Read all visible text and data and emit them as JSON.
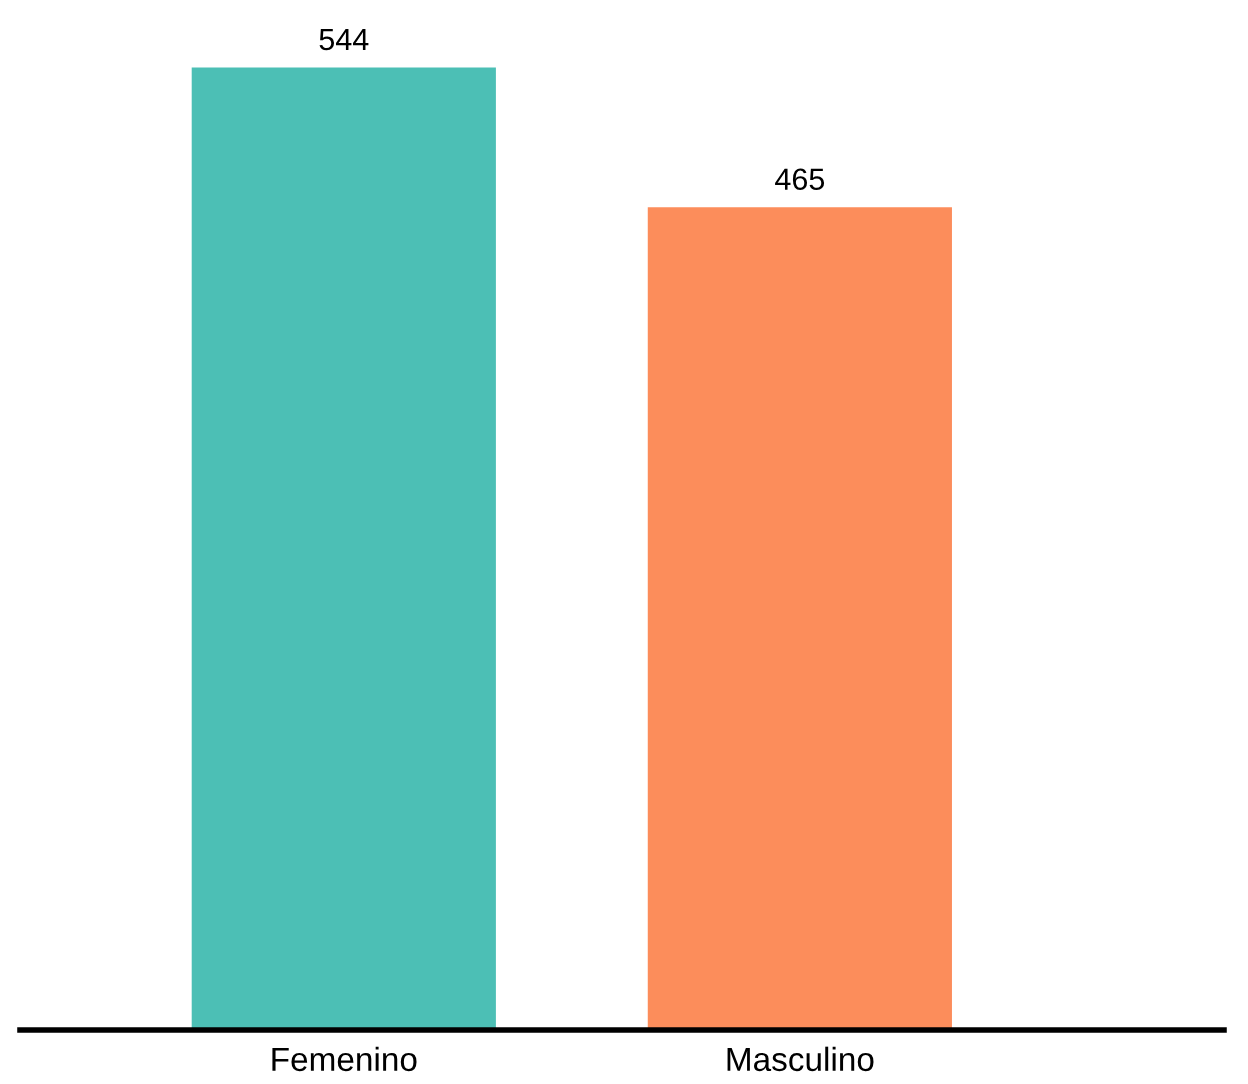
{
  "chart_data": {
    "type": "bar",
    "categories": [
      "Femenino",
      "Masculino"
    ],
    "values": [
      544,
      465
    ],
    "colors": [
      "#4cbfb5",
      "#fc8d5b"
    ],
    "data_labels": true
  }
}
